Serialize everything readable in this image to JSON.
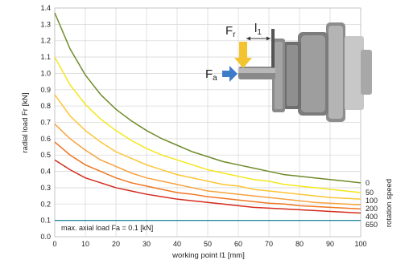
{
  "chart_data": {
    "type": "line",
    "title": "",
    "xlabel": "working point l1 [mm]",
    "ylabel": "radial load Fr [kN]",
    "xlim": [
      0,
      100
    ],
    "ylim": [
      0,
      1.4
    ],
    "x_ticks": [
      "0",
      "10",
      "20",
      "30",
      "40",
      "50",
      "60",
      "70",
      "80",
      "90",
      "100"
    ],
    "y_ticks": [
      "0.0",
      "0.1",
      "0.2",
      "0.3",
      "0.4",
      "0.5",
      "0.6",
      "0.7",
      "0.8",
      "0.9",
      "1.0",
      "1.1",
      "1.2",
      "1.3",
      "1.4"
    ],
    "grid": true,
    "legend_title": "rotation speed",
    "legend_placement": "right",
    "x": [
      0,
      5,
      10,
      15,
      20,
      25,
      30,
      35,
      40,
      45,
      50,
      55,
      60,
      65,
      70,
      75,
      80,
      85,
      90,
      95,
      100
    ],
    "series": [
      {
        "name": "0",
        "color": "#6e8b2a",
        "values": [
          1.37,
          1.15,
          0.99,
          0.87,
          0.78,
          0.71,
          0.65,
          0.6,
          0.56,
          0.52,
          0.49,
          0.46,
          0.44,
          0.42,
          0.4,
          0.38,
          0.37,
          0.36,
          0.35,
          0.34,
          0.33
        ]
      },
      {
        "name": "50",
        "color": "#f5e61c",
        "values": [
          1.1,
          0.93,
          0.81,
          0.72,
          0.65,
          0.59,
          0.54,
          0.5,
          0.47,
          0.44,
          0.41,
          0.39,
          0.37,
          0.35,
          0.34,
          0.32,
          0.31,
          0.3,
          0.29,
          0.28,
          0.27
        ]
      },
      {
        "name": "100",
        "color": "#fdc534",
        "values": [
          0.87,
          0.74,
          0.65,
          0.58,
          0.52,
          0.48,
          0.44,
          0.41,
          0.38,
          0.36,
          0.34,
          0.32,
          0.31,
          0.29,
          0.28,
          0.27,
          0.26,
          0.25,
          0.24,
          0.235,
          0.23
        ]
      },
      {
        "name": "200",
        "color": "#f7a23e",
        "values": [
          0.69,
          0.6,
          0.53,
          0.47,
          0.43,
          0.39,
          0.36,
          0.34,
          0.32,
          0.3,
          0.28,
          0.27,
          0.26,
          0.25,
          0.24,
          0.23,
          0.22,
          0.21,
          0.205,
          0.2,
          0.195
        ]
      },
      {
        "name": "400",
        "color": "#ef7622",
        "values": [
          0.58,
          0.5,
          0.44,
          0.4,
          0.36,
          0.33,
          0.31,
          0.29,
          0.27,
          0.26,
          0.245,
          0.235,
          0.225,
          0.215,
          0.205,
          0.2,
          0.19,
          0.185,
          0.18,
          0.175,
          0.17
        ]
      },
      {
        "name": "650",
        "color": "#d42b1e",
        "values": [
          0.47,
          0.41,
          0.36,
          0.33,
          0.3,
          0.28,
          0.26,
          0.245,
          0.23,
          0.22,
          0.21,
          0.2,
          0.19,
          0.18,
          0.175,
          0.17,
          0.165,
          0.16,
          0.155,
          0.15,
          0.145
        ]
      }
    ],
    "axial_limit": {
      "label": "max. axial load Fa = 0.1 [kN]",
      "value": 0.1,
      "color": "#2a8aa0"
    },
    "illustration": {
      "fr_label": "F",
      "fr_sub": "r",
      "fa_label": "F",
      "fa_sub": "a",
      "l_label": "l",
      "l_sub": "1",
      "fr_arrow_color": "#f4c430",
      "fa_arrow_color": "#3d7cc9"
    }
  }
}
